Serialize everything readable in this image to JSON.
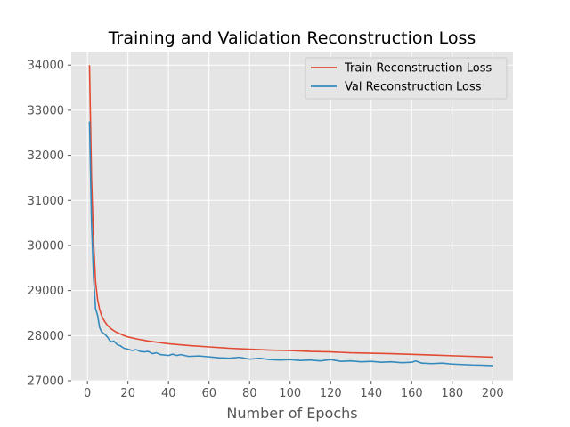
{
  "chart_data": {
    "type": "line",
    "title": "Training and Validation Reconstruction Loss",
    "xlabel": "Number of Epochs",
    "ylabel": "",
    "xlim": [
      -8,
      210
    ],
    "ylim": [
      27000,
      34300
    ],
    "xticks": [
      0,
      20,
      40,
      60,
      80,
      100,
      120,
      140,
      160,
      180,
      200
    ],
    "yticks": [
      27000,
      28000,
      29000,
      30000,
      31000,
      32000,
      33000,
      34000
    ],
    "grid": true,
    "legend_position": "top-right",
    "series": [
      {
        "name": "Train Reconstruction Loss",
        "color": "#E24A33",
        "x": [
          1,
          2,
          3,
          4,
          5,
          6,
          7,
          8,
          9,
          10,
          12,
          14,
          16,
          18,
          20,
          25,
          30,
          40,
          50,
          60,
          70,
          80,
          90,
          100,
          110,
          120,
          130,
          140,
          150,
          160,
          170,
          180,
          190,
          200
        ],
        "y": [
          34000,
          31500,
          30100,
          29200,
          28800,
          28580,
          28440,
          28350,
          28280,
          28220,
          28140,
          28080,
          28040,
          28000,
          27970,
          27920,
          27880,
          27820,
          27780,
          27750,
          27720,
          27700,
          27680,
          27670,
          27650,
          27640,
          27620,
          27610,
          27600,
          27585,
          27570,
          27555,
          27540,
          27525
        ]
      },
      {
        "name": "Val Reconstruction Loss",
        "color": "#348ABD",
        "x": [
          1,
          2,
          3,
          4,
          5,
          6,
          7,
          8,
          9,
          10,
          11,
          12,
          13,
          14,
          15,
          16,
          18,
          20,
          22,
          24,
          26,
          28,
          30,
          32,
          34,
          36,
          40,
          42,
          44,
          46,
          50,
          55,
          60,
          65,
          70,
          75,
          80,
          85,
          90,
          95,
          100,
          105,
          110,
          115,
          120,
          125,
          130,
          135,
          140,
          145,
          150,
          155,
          160,
          162,
          165,
          170,
          175,
          180,
          185,
          190,
          195,
          200
        ],
        "y": [
          32750,
          30500,
          29300,
          28600,
          28450,
          28180,
          28080,
          28050,
          28010,
          27960,
          27890,
          27860,
          27880,
          27830,
          27790,
          27780,
          27720,
          27700,
          27670,
          27690,
          27650,
          27640,
          27650,
          27600,
          27620,
          27580,
          27560,
          27590,
          27560,
          27580,
          27540,
          27550,
          27530,
          27510,
          27500,
          27520,
          27480,
          27500,
          27470,
          27460,
          27470,
          27450,
          27460,
          27440,
          27470,
          27430,
          27440,
          27420,
          27430,
          27410,
          27420,
          27400,
          27410,
          27440,
          27390,
          27380,
          27390,
          27370,
          27360,
          27350,
          27345,
          27335
        ]
      }
    ]
  }
}
